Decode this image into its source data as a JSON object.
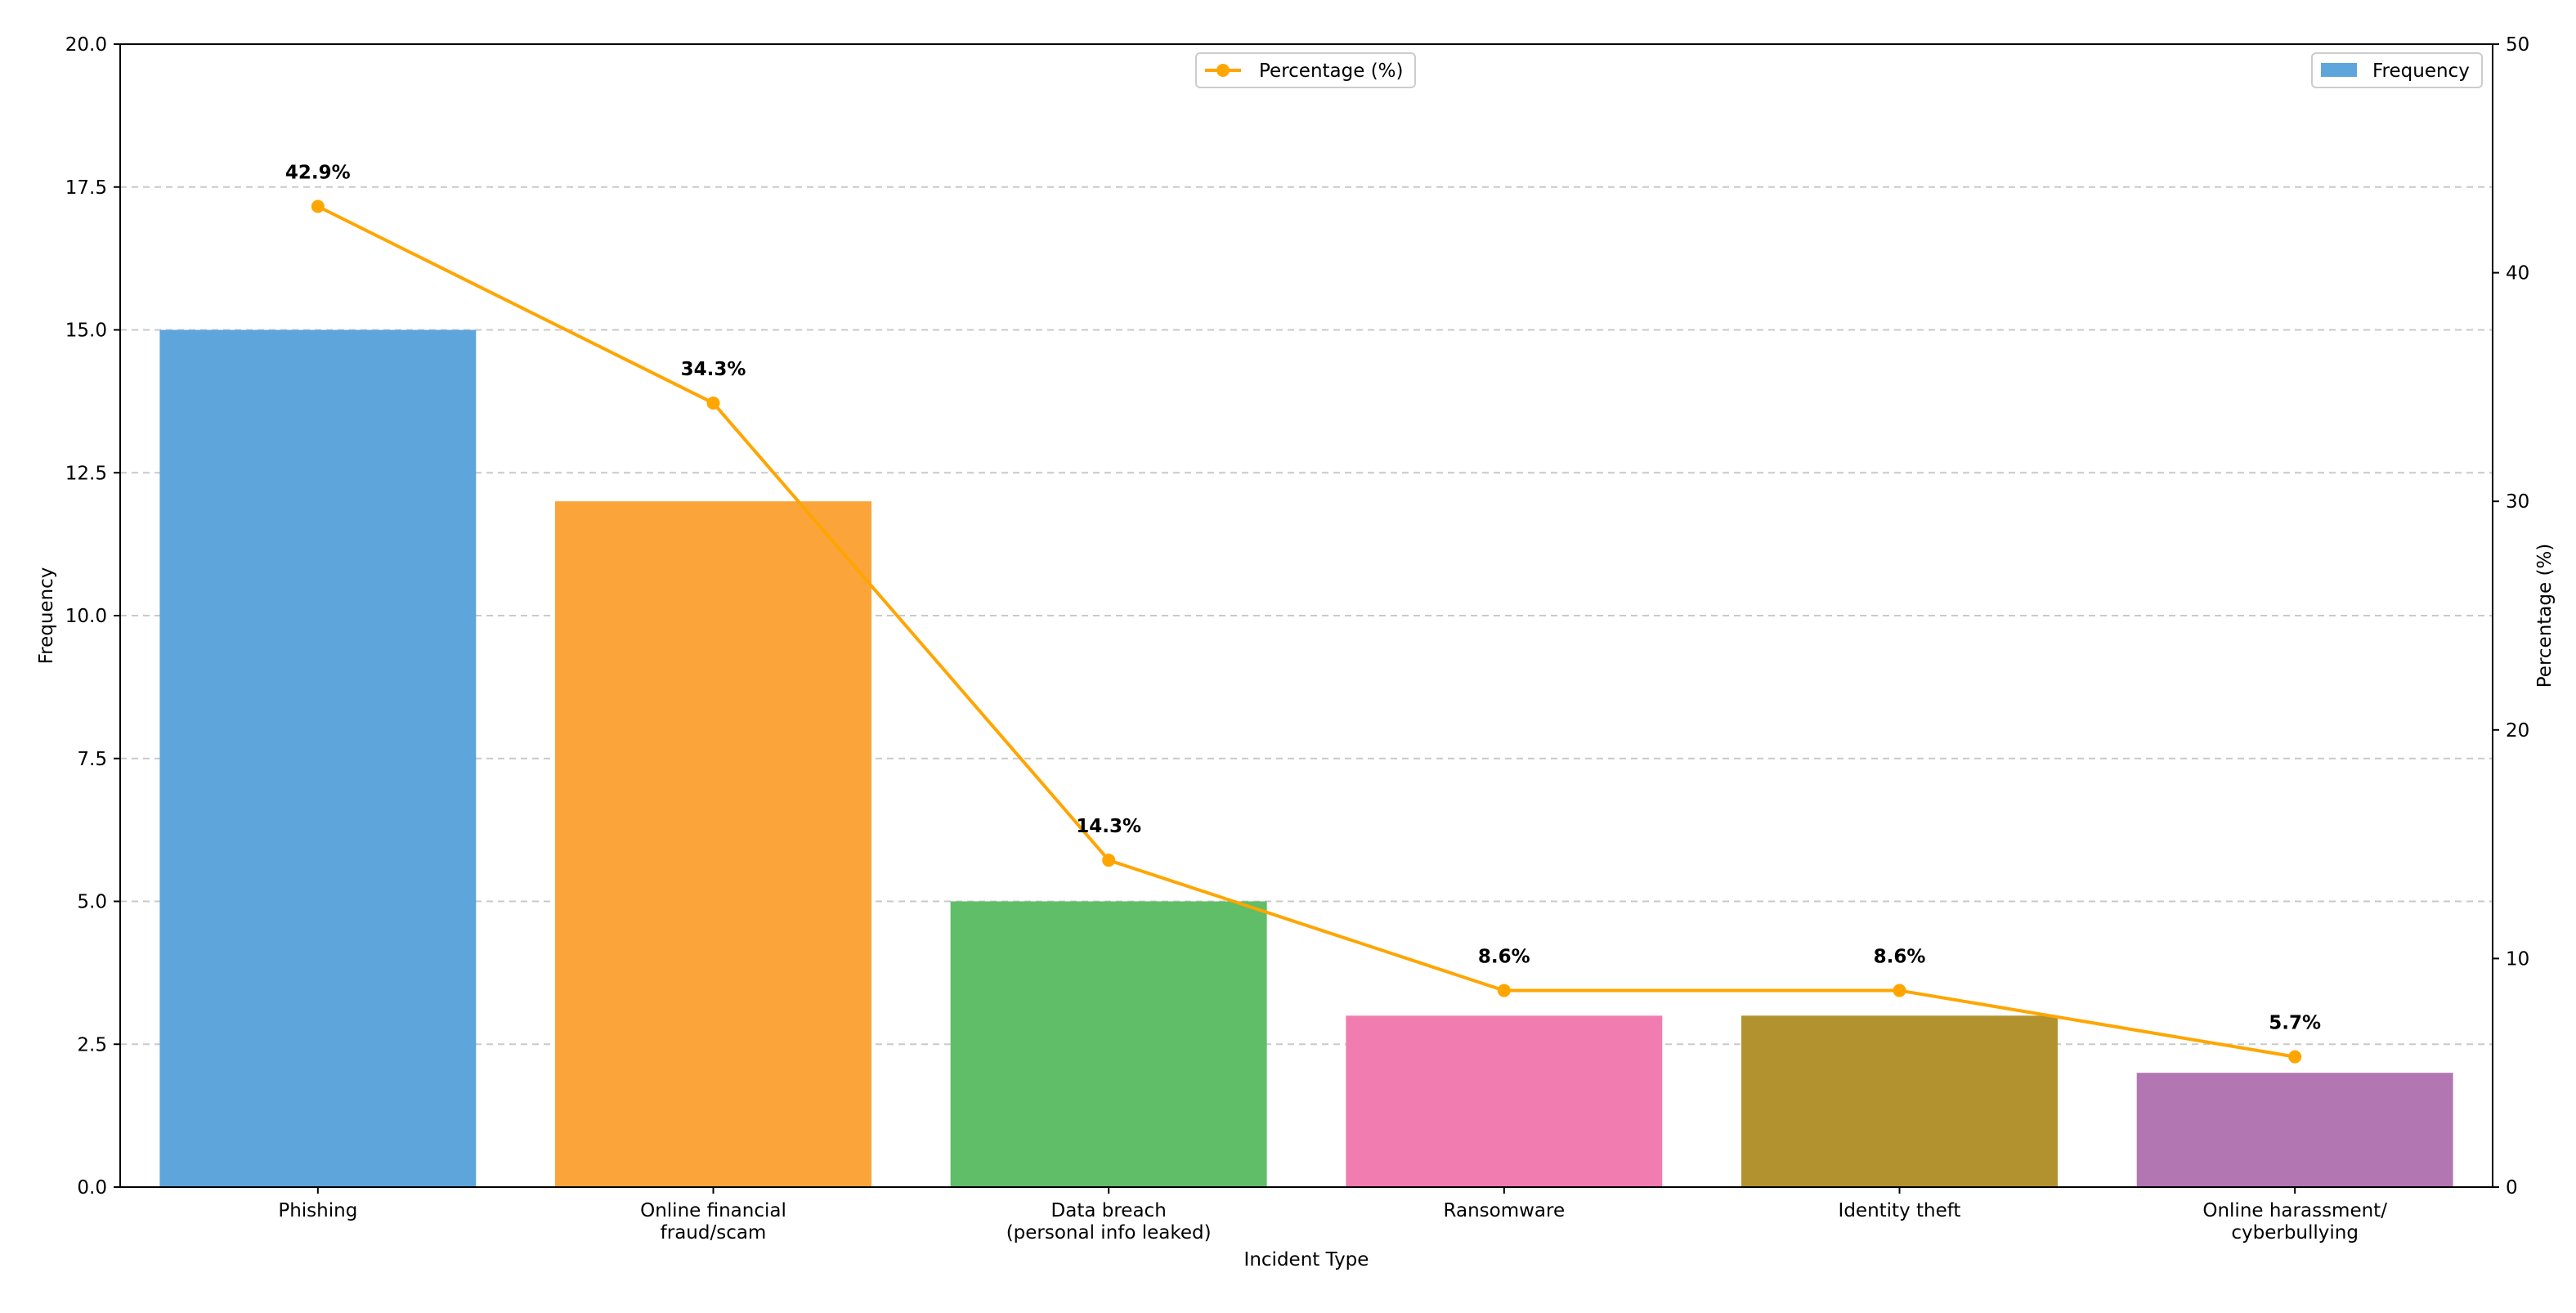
{
  "chart_data": {
    "type": "bar",
    "title": "",
    "xlabel": "Incident Type",
    "ylabel": "Frequency",
    "y2label": "Percentage (%)",
    "categories": [
      "Phishing",
      "Online financial fraud/scam",
      "Data breach (personal info leaked)",
      "Ransomware",
      "Identity theft",
      "Online harassment/ cyberbullying"
    ],
    "category_lines": [
      [
        "Phishing"
      ],
      [
        "Online financial",
        "fraud/scam"
      ],
      [
        "Data breach",
        "(personal info leaked)"
      ],
      [
        "Ransomware"
      ],
      [
        "Identity theft"
      ],
      [
        "Online harassment/",
        "cyberbullying"
      ]
    ],
    "series": [
      {
        "name": "Frequency",
        "axis": "left",
        "kind": "bar",
        "values": [
          15,
          12,
          5,
          3,
          3,
          2
        ],
        "colors": [
          "#5DA5DA",
          "#FAA43A",
          "#60BD68",
          "#F17CB0",
          "#B2912F",
          "#B276B2"
        ]
      },
      {
        "name": "Percentage (%)",
        "axis": "right",
        "kind": "line",
        "values": [
          42.9,
          34.3,
          14.3,
          8.6,
          8.6,
          5.7
        ],
        "labels": [
          "42.9%",
          "34.3%",
          "14.3%",
          "8.6%",
          "8.6%",
          "5.7%"
        ],
        "color": "#FFA500"
      }
    ],
    "ylim": [
      0,
      20
    ],
    "y2lim": [
      0,
      50
    ],
    "yticks": [
      "0.0",
      "2.5",
      "5.0",
      "7.5",
      "10.0",
      "12.5",
      "15.0",
      "17.5",
      "20.0"
    ],
    "y2ticks": [
      "0",
      "10",
      "20",
      "30",
      "40",
      "50"
    ],
    "grid": "y-dashed",
    "legends": {
      "line": {
        "label": "Percentage (%)",
        "placement": "top-center"
      },
      "bar": {
        "label": "Frequency",
        "placement": "top-right"
      }
    }
  }
}
